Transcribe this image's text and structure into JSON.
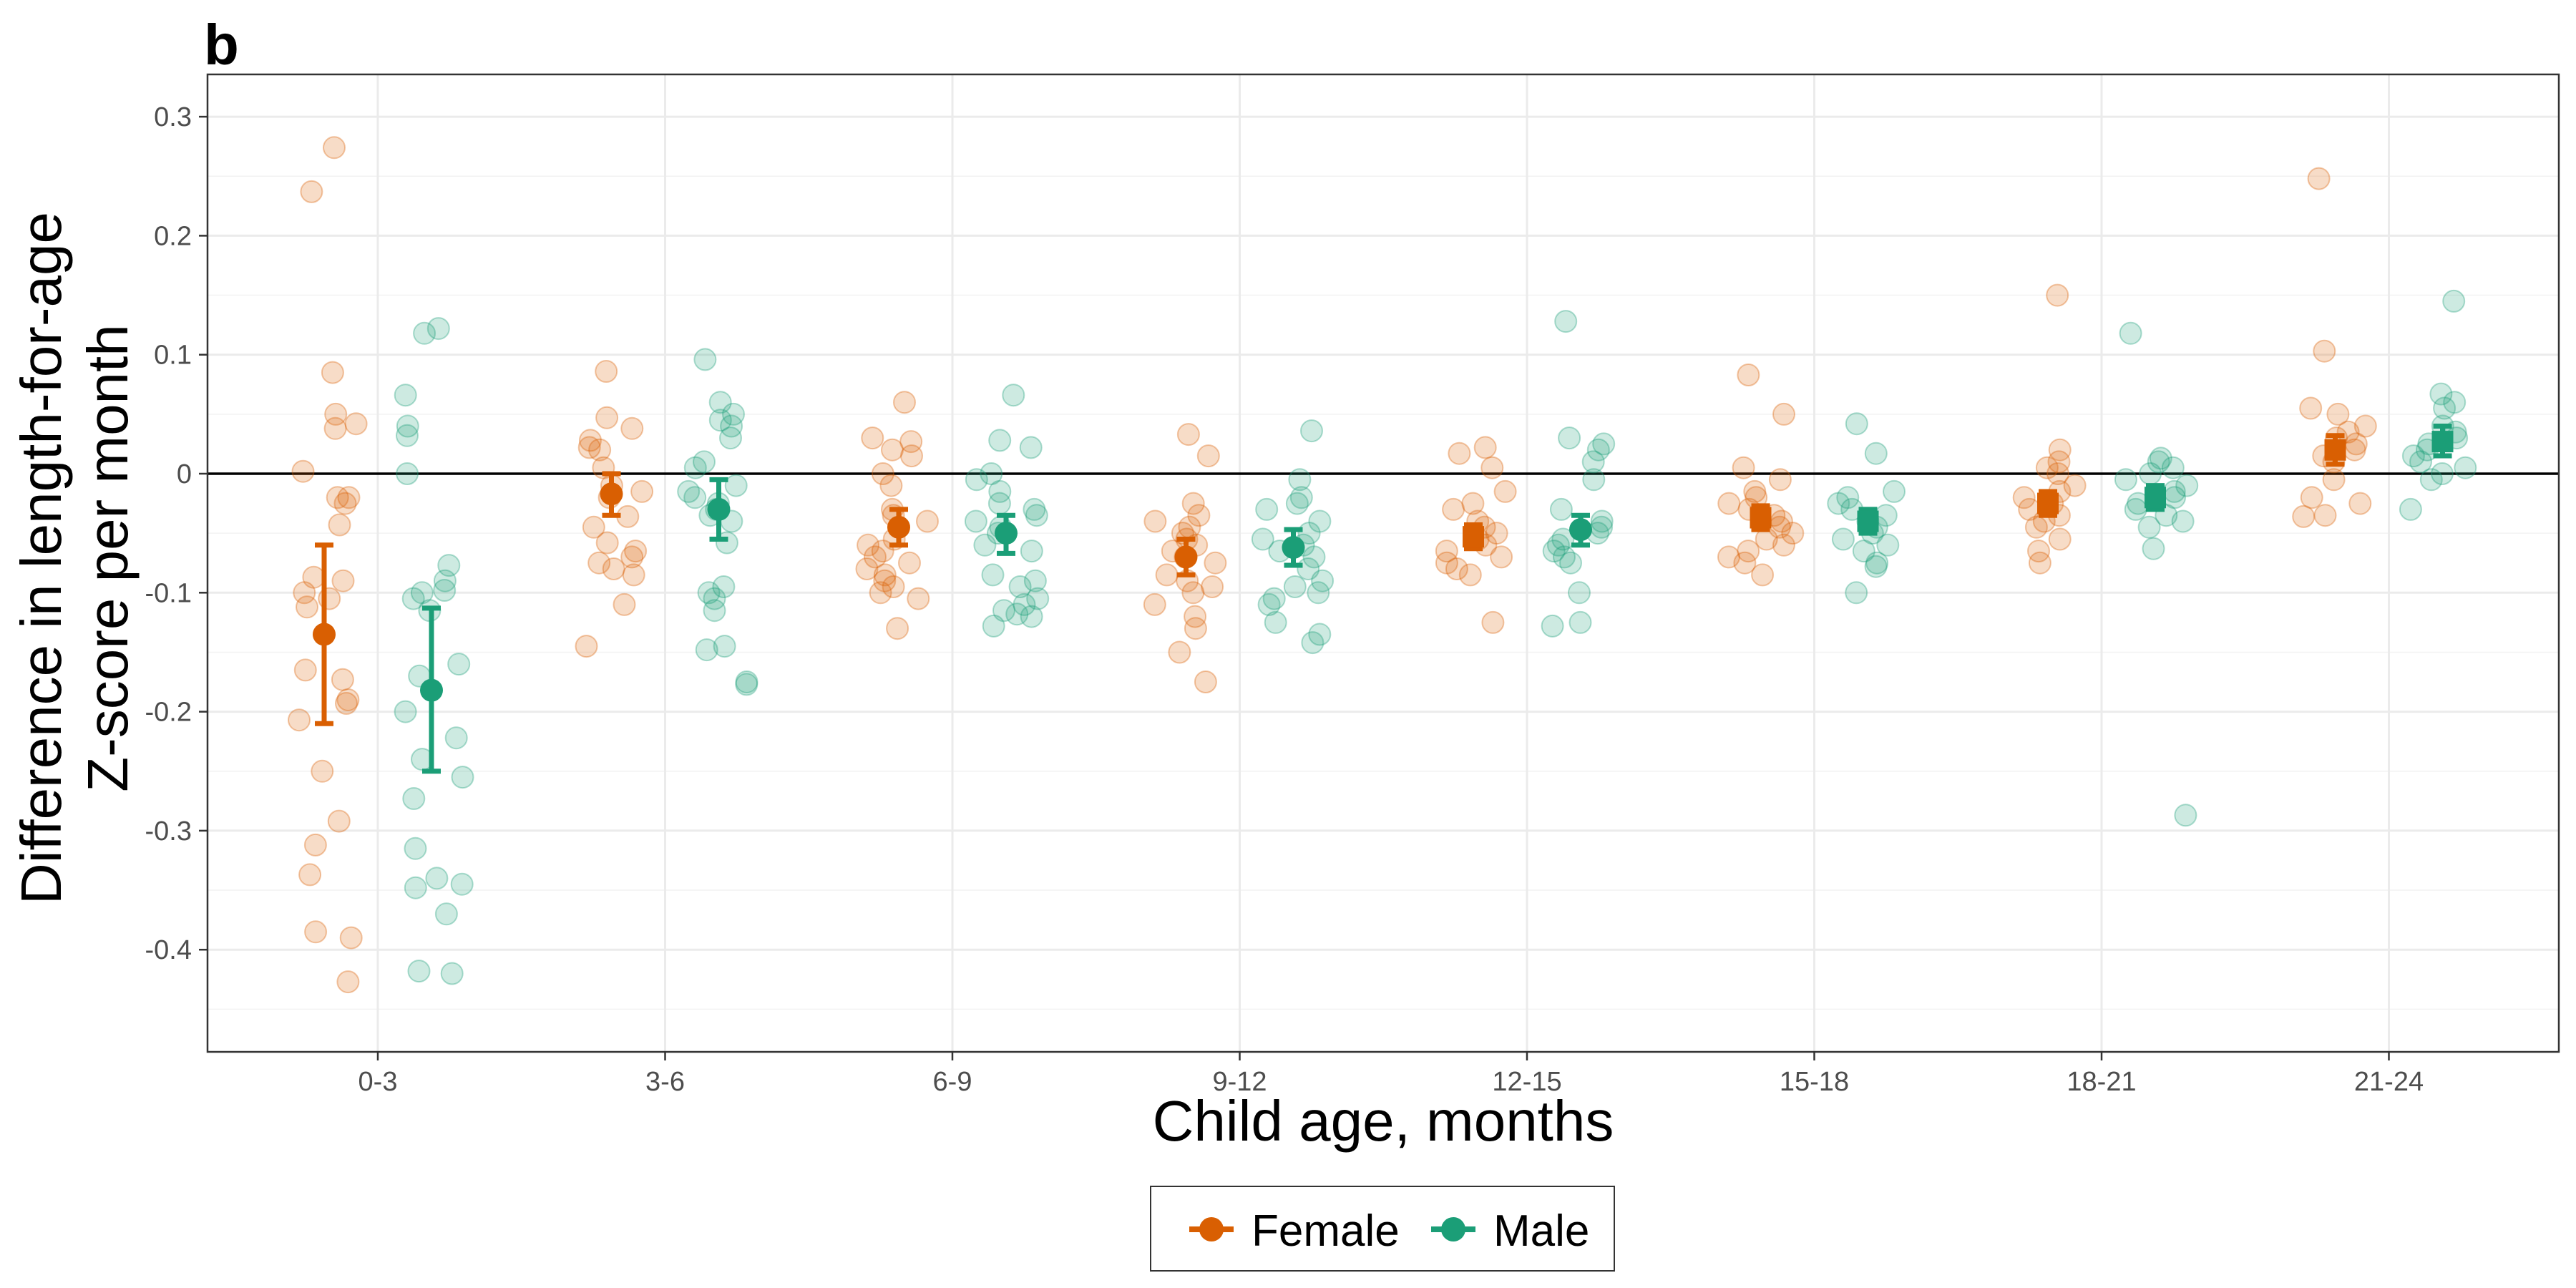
{
  "panel_label": "b",
  "colors": {
    "female": "#D95F02",
    "male": "#1B9E77",
    "grid": "#ebebeb",
    "axis": "#333333"
  },
  "chart_data": {
    "type": "scatter",
    "title": "",
    "xlabel": "Child age, months",
    "ylabel": [
      "Difference in length-for-age",
      "Z-score per month"
    ],
    "ylim": [
      -0.48,
      0.34
    ],
    "yticks": [
      0.3,
      0.2,
      0.1,
      0,
      -0.1,
      -0.2,
      -0.3,
      -0.4
    ],
    "ytick_labels": [
      "0.3",
      "0.2",
      "0.1",
      "0",
      "-0.1",
      "-0.2",
      "-0.3",
      "-0.4"
    ],
    "categories": [
      "0-3",
      "3-6",
      "6-9",
      "9-12",
      "12-15",
      "15-18",
      "18-21",
      "21-24"
    ],
    "reference_line_y": 0,
    "grid": true,
    "legend_position": "bottom",
    "series": [
      {
        "name": "Female",
        "color": "#D95F02",
        "summary": [
          {
            "category": "0-3",
            "mean": -0.135,
            "lower": -0.21,
            "upper": -0.06,
            "marker": "circle"
          },
          {
            "category": "3-6",
            "mean": -0.017,
            "lower": -0.035,
            "upper": 0.0,
            "marker": "circle"
          },
          {
            "category": "6-9",
            "mean": -0.045,
            "lower": -0.06,
            "upper": -0.03,
            "marker": "circle"
          },
          {
            "category": "9-12",
            "mean": -0.07,
            "lower": -0.085,
            "upper": -0.055,
            "marker": "circle"
          },
          {
            "category": "12-15",
            "mean": -0.053,
            "lower": -0.063,
            "upper": -0.043,
            "marker": "square"
          },
          {
            "category": "15-18",
            "mean": -0.037,
            "lower": -0.047,
            "upper": -0.027,
            "marker": "square"
          },
          {
            "category": "18-21",
            "mean": -0.025,
            "lower": -0.035,
            "upper": -0.015,
            "marker": "square"
          },
          {
            "category": "21-24",
            "mean": 0.02,
            "lower": 0.008,
            "upper": 0.032,
            "marker": "square"
          }
        ],
        "points": [
          [
            0.274,
            0.237,
            0.085,
            0.042,
            0.05,
            0.038,
            0.002,
            -0.02,
            -0.02,
            -0.025,
            -0.043,
            -0.087,
            -0.09,
            -0.1,
            -0.105,
            -0.112,
            -0.165,
            -0.173,
            -0.19,
            -0.193,
            -0.207,
            -0.25,
            -0.292,
            -0.312,
            -0.337,
            -0.385,
            -0.39,
            -0.427
          ],
          [
            0.086,
            0.047,
            0.038,
            0.028,
            0.022,
            0.02,
            0.005,
            -0.01,
            -0.015,
            -0.02,
            -0.036,
            -0.045,
            -0.058,
            -0.065,
            -0.07,
            -0.075,
            -0.08,
            -0.085,
            -0.11,
            -0.145
          ],
          [
            0.06,
            0.03,
            0.027,
            0.02,
            0.015,
            0.0,
            -0.01,
            -0.03,
            -0.035,
            -0.04,
            -0.055,
            -0.06,
            -0.065,
            -0.07,
            -0.075,
            -0.08,
            -0.085,
            -0.09,
            -0.095,
            -0.1,
            -0.105,
            -0.13
          ],
          [
            0.033,
            0.015,
            -0.025,
            -0.035,
            -0.04,
            -0.045,
            -0.05,
            -0.055,
            -0.06,
            -0.065,
            -0.07,
            -0.075,
            -0.085,
            -0.09,
            -0.095,
            -0.1,
            -0.11,
            -0.12,
            -0.13,
            -0.15,
            -0.175
          ],
          [
            0.022,
            0.017,
            0.005,
            -0.015,
            -0.025,
            -0.03,
            -0.04,
            -0.045,
            -0.05,
            -0.055,
            -0.06,
            -0.065,
            -0.07,
            -0.075,
            -0.08,
            -0.085,
            -0.125
          ],
          [
            0.083,
            0.05,
            0.005,
            -0.005,
            -0.015,
            -0.02,
            -0.025,
            -0.03,
            -0.035,
            -0.04,
            -0.045,
            -0.05,
            -0.055,
            -0.06,
            -0.065,
            -0.07,
            -0.075,
            -0.085
          ],
          [
            0.15,
            0.02,
            0.01,
            0.005,
            0.0,
            -0.01,
            -0.015,
            -0.02,
            -0.025,
            -0.03,
            -0.035,
            -0.04,
            -0.045,
            -0.055,
            -0.065,
            -0.075
          ],
          [
            0.248,
            0.103,
            0.055,
            0.05,
            0.04,
            0.035,
            0.03,
            0.025,
            0.02,
            0.015,
            0.01,
            -0.005,
            -0.02,
            -0.025,
            -0.035,
            -0.036
          ]
        ]
      },
      {
        "name": "Male",
        "color": "#1B9E77",
        "summary": [
          {
            "category": "0-3",
            "mean": -0.182,
            "lower": -0.25,
            "upper": -0.113,
            "marker": "circle"
          },
          {
            "category": "3-6",
            "mean": -0.03,
            "lower": -0.055,
            "upper": -0.005,
            "marker": "circle"
          },
          {
            "category": "6-9",
            "mean": -0.05,
            "lower": -0.067,
            "upper": -0.035,
            "marker": "circle"
          },
          {
            "category": "9-12",
            "mean": -0.062,
            "lower": -0.077,
            "upper": -0.047,
            "marker": "circle"
          },
          {
            "category": "12-15",
            "mean": -0.047,
            "lower": -0.06,
            "upper": -0.035,
            "marker": "circle"
          },
          {
            "category": "15-18",
            "mean": -0.04,
            "lower": -0.05,
            "upper": -0.03,
            "marker": "square"
          },
          {
            "category": "18-21",
            "mean": -0.02,
            "lower": -0.03,
            "upper": -0.01,
            "marker": "square"
          },
          {
            "category": "21-24",
            "mean": 0.027,
            "lower": 0.015,
            "upper": 0.04,
            "marker": "square"
          }
        ],
        "points": [
          [
            0.122,
            0.118,
            0.066,
            0.04,
            0.032,
            0.0,
            -0.077,
            -0.09,
            -0.098,
            -0.1,
            -0.105,
            -0.115,
            -0.16,
            -0.17,
            -0.2,
            -0.222,
            -0.24,
            -0.255,
            -0.273,
            -0.315,
            -0.34,
            -0.345,
            -0.348,
            -0.37,
            -0.418,
            -0.42
          ],
          [
            0.096,
            0.06,
            0.05,
            0.045,
            0.04,
            0.03,
            0.01,
            0.005,
            -0.01,
            -0.015,
            -0.02,
            -0.025,
            -0.03,
            -0.035,
            -0.04,
            -0.058,
            -0.095,
            -0.1,
            -0.105,
            -0.115,
            -0.145,
            -0.148,
            -0.175,
            -0.177
          ],
          [
            0.066,
            0.028,
            0.022,
            0.0,
            -0.005,
            -0.015,
            -0.025,
            -0.03,
            -0.035,
            -0.04,
            -0.045,
            -0.05,
            -0.06,
            -0.065,
            -0.085,
            -0.09,
            -0.095,
            -0.105,
            -0.11,
            -0.115,
            -0.118,
            -0.12,
            -0.128
          ],
          [
            0.036,
            -0.005,
            -0.02,
            -0.025,
            -0.03,
            -0.04,
            -0.05,
            -0.055,
            -0.06,
            -0.065,
            -0.07,
            -0.08,
            -0.09,
            -0.095,
            -0.1,
            -0.105,
            -0.11,
            -0.125,
            -0.135,
            -0.142
          ],
          [
            0.128,
            0.03,
            0.025,
            0.02,
            0.01,
            -0.005,
            -0.03,
            -0.04,
            -0.045,
            -0.05,
            -0.055,
            -0.06,
            -0.065,
            -0.07,
            -0.075,
            -0.1,
            -0.125,
            -0.128
          ],
          [
            0.042,
            0.017,
            -0.015,
            -0.02,
            -0.025,
            -0.03,
            -0.035,
            -0.04,
            -0.045,
            -0.05,
            -0.055,
            -0.06,
            -0.065,
            -0.075,
            -0.078,
            -0.1
          ],
          [
            0.118,
            0.013,
            0.01,
            0.005,
            0.0,
            -0.005,
            -0.01,
            -0.015,
            -0.02,
            -0.025,
            -0.03,
            -0.035,
            -0.04,
            -0.045,
            -0.063,
            -0.287
          ],
          [
            0.145,
            0.067,
            0.06,
            0.055,
            0.04,
            0.035,
            0.03,
            0.025,
            0.02,
            0.015,
            0.01,
            0.005,
            0.0,
            -0.005,
            -0.03
          ]
        ]
      }
    ]
  },
  "legend": {
    "items": [
      "Female",
      "Male"
    ]
  }
}
